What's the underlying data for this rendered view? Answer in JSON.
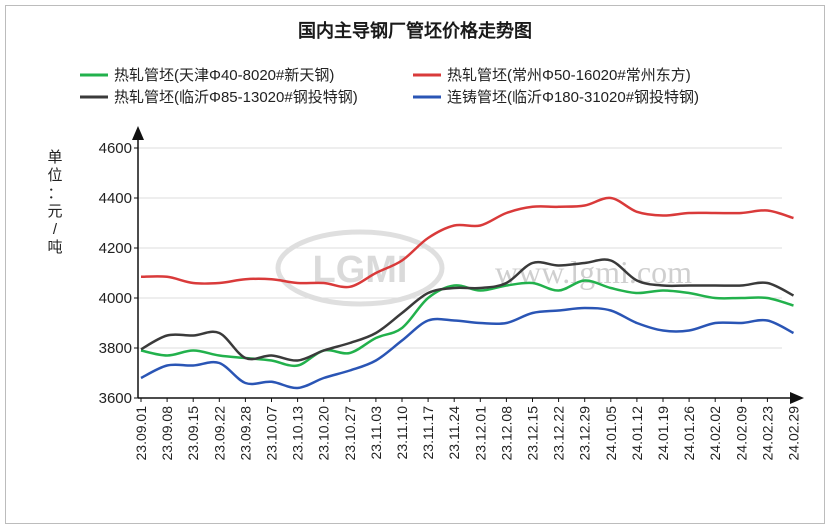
{
  "chart_data": {
    "type": "line",
    "title": "国内主导钢厂管坯价格走势图",
    "ylabel_chars": [
      "单",
      "位",
      "：",
      "元",
      "/",
      "吨"
    ],
    "ylim": [
      3600,
      4600
    ],
    "yticks": [
      "3600",
      "3800",
      "4000",
      "4200",
      "4400",
      "4600"
    ],
    "grid": "horizontal",
    "legend_position": "top",
    "watermark": "www.lgmi.com",
    "logo_text": "LGMI",
    "x": [
      "23.09.01",
      "23.09.08",
      "23.09.15",
      "23.09.22",
      "23.09.28",
      "23.10.07",
      "23.10.13",
      "23.10.20",
      "23.10.27",
      "23.11.03",
      "23.11.10",
      "23.11.17",
      "23.11.24",
      "23.12.01",
      "23.12.08",
      "23.12.15",
      "23.12.22",
      "23.12.29",
      "24.01.05",
      "24.01.12",
      "24.01.19",
      "24.01.26",
      "24.02.02",
      "24.02.09",
      "24.02.23",
      "24.02.29"
    ],
    "series": [
      {
        "name": "热轧管坯(天津Φ40-8020#新天钢)",
        "color": "#22b14c",
        "values": [
          3790,
          3770,
          3790,
          3770,
          3760,
          3750,
          3730,
          3790,
          3780,
          3840,
          3880,
          4000,
          4050,
          4030,
          4050,
          4060,
          4030,
          4070,
          4040,
          4020,
          4030,
          4020,
          4000,
          4000,
          4000,
          3970
        ]
      },
      {
        "name": "热轧管坯(常州Φ50-16020#常州东方)",
        "color": "#d93a3a",
        "values": [
          4085,
          4085,
          4060,
          4060,
          4075,
          4075,
          4060,
          4060,
          4045,
          4100,
          4150,
          4240,
          4290,
          4290,
          4340,
          4365,
          4365,
          4370,
          4400,
          4345,
          4330,
          4340,
          4340,
          4340,
          4350,
          4320
        ]
      },
      {
        "name": "热轧管坯(临沂Φ85-13020#钢投特钢)",
        "color": "#3a3a3a",
        "values": [
          3795,
          3850,
          3850,
          3860,
          3760,
          3770,
          3750,
          3790,
          3820,
          3860,
          3940,
          4020,
          4040,
          4040,
          4060,
          4140,
          4130,
          4140,
          4150,
          4070,
          4050,
          4050,
          4050,
          4050,
          4060,
          4010
        ]
      },
      {
        "name": "连铸管坯(临沂Φ180-31020#钢投特钢)",
        "color": "#2a55b5",
        "values": [
          3680,
          3730,
          3730,
          3740,
          3660,
          3665,
          3640,
          3680,
          3710,
          3750,
          3830,
          3910,
          3910,
          3900,
          3900,
          3940,
          3950,
          3960,
          3950,
          3900,
          3870,
          3870,
          3900,
          3900,
          3910,
          3860
        ]
      }
    ]
  }
}
